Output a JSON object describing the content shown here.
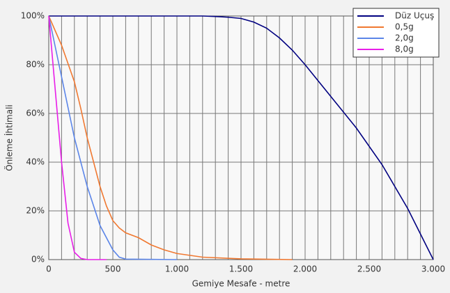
{
  "chart_data": {
    "type": "line",
    "xlabel": "Gemiye Mesafe - metre",
    "ylabel": "Önleme İhtimali",
    "xlim": [
      0,
      3000
    ],
    "ylim": [
      0,
      100
    ],
    "xticks": [
      {
        "value": 0,
        "label": "0"
      },
      {
        "value": 500,
        "label": "500"
      },
      {
        "value": 1000,
        "label": "1.000"
      },
      {
        "value": 1500,
        "label": "1.500"
      },
      {
        "value": 2000,
        "label": "2.000"
      },
      {
        "value": 2500,
        "label": "2.500"
      },
      {
        "value": 3000,
        "label": "3.000"
      }
    ],
    "x_grid": [
      100,
      200,
      300,
      400,
      600,
      700,
      800,
      900,
      1100,
      1200,
      1300,
      1400,
      1600,
      1700,
      1800,
      1900,
      2100,
      2200,
      2300,
      2400,
      2600,
      2700,
      2800,
      2900
    ],
    "yticks": [
      {
        "value": 0,
        "label": "0%"
      },
      {
        "value": 20,
        "label": "20%"
      },
      {
        "value": 40,
        "label": "40%"
      },
      {
        "value": 60,
        "label": "60%"
      },
      {
        "value": 80,
        "label": "80%"
      },
      {
        "value": 100,
        "label": "100%"
      }
    ],
    "grid": true,
    "legend": "top-right",
    "series": [
      {
        "name": "Düz Uçuş",
        "color": "#000080",
        "x": [
          0,
          1200,
          1300,
          1400,
          1500,
          1600,
          1700,
          1800,
          1900,
          2000,
          2200,
          2400,
          2600,
          2800,
          3000
        ],
        "values": [
          100,
          100,
          99.8,
          99.5,
          99,
          97.5,
          95,
          91,
          86,
          80,
          67,
          54,
          39,
          21,
          0
        ]
      },
      {
        "name": "0,5g",
        "color": "#f07830",
        "x": [
          0,
          100,
          200,
          250,
          300,
          400,
          450,
          500,
          550,
          600,
          700,
          800,
          900,
          1000,
          1200,
          1500,
          1900
        ],
        "values": [
          100,
          88,
          73,
          62,
          50,
          30,
          22,
          16,
          13,
          11,
          9,
          6,
          4,
          2.5,
          1,
          0.3,
          0
        ]
      },
      {
        "name": "2,0g",
        "color": "#5b85e8",
        "x": [
          0,
          100,
          200,
          300,
          400,
          500,
          550,
          600,
          1000
        ],
        "values": [
          100,
          75,
          50,
          30,
          14,
          4,
          1,
          0.2,
          0
        ]
      },
      {
        "name": "8,0g",
        "color": "#e81ee8",
        "x": [
          0,
          50,
          100,
          150,
          200,
          250,
          300,
          450
        ],
        "values": [
          100,
          70,
          40,
          15,
          3,
          0.5,
          0,
          0
        ]
      }
    ]
  }
}
